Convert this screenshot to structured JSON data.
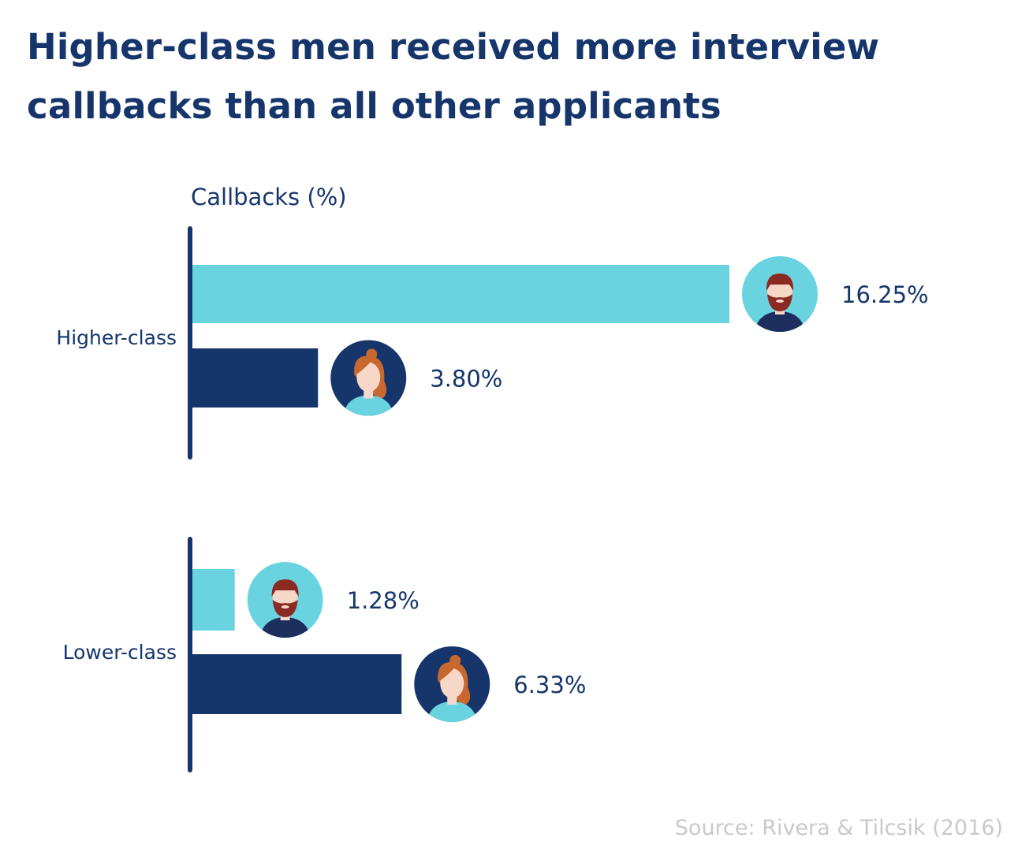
{
  "title": "Higher-class men received more interview callbacks than all other applicants",
  "source": "Source: Rivera & Tilcsik (2016)",
  "colors": {
    "men": "#6ad3e0",
    "women": "#15356b",
    "text": "#15356b",
    "source": "#c9c9c9"
  },
  "chart_data": {
    "type": "bar",
    "orientation": "horizontal",
    "axis_label": "Callbacks (%)",
    "groups": [
      {
        "label": "Higher-class",
        "bars": [
          {
            "gender": "man",
            "icon": "man-avatar-icon",
            "value": 16.25,
            "label": "16.25%"
          },
          {
            "gender": "woman",
            "icon": "woman-avatar-icon",
            "value": 3.8,
            "label": "3.80%"
          }
        ]
      },
      {
        "label": "Lower-class",
        "bars": [
          {
            "gender": "man",
            "icon": "man-avatar-icon",
            "value": 1.28,
            "label": "1.28%"
          },
          {
            "gender": "woman",
            "icon": "woman-avatar-icon",
            "value": 6.33,
            "label": "6.33%"
          }
        ]
      }
    ],
    "grid": false,
    "legend": "none"
  }
}
